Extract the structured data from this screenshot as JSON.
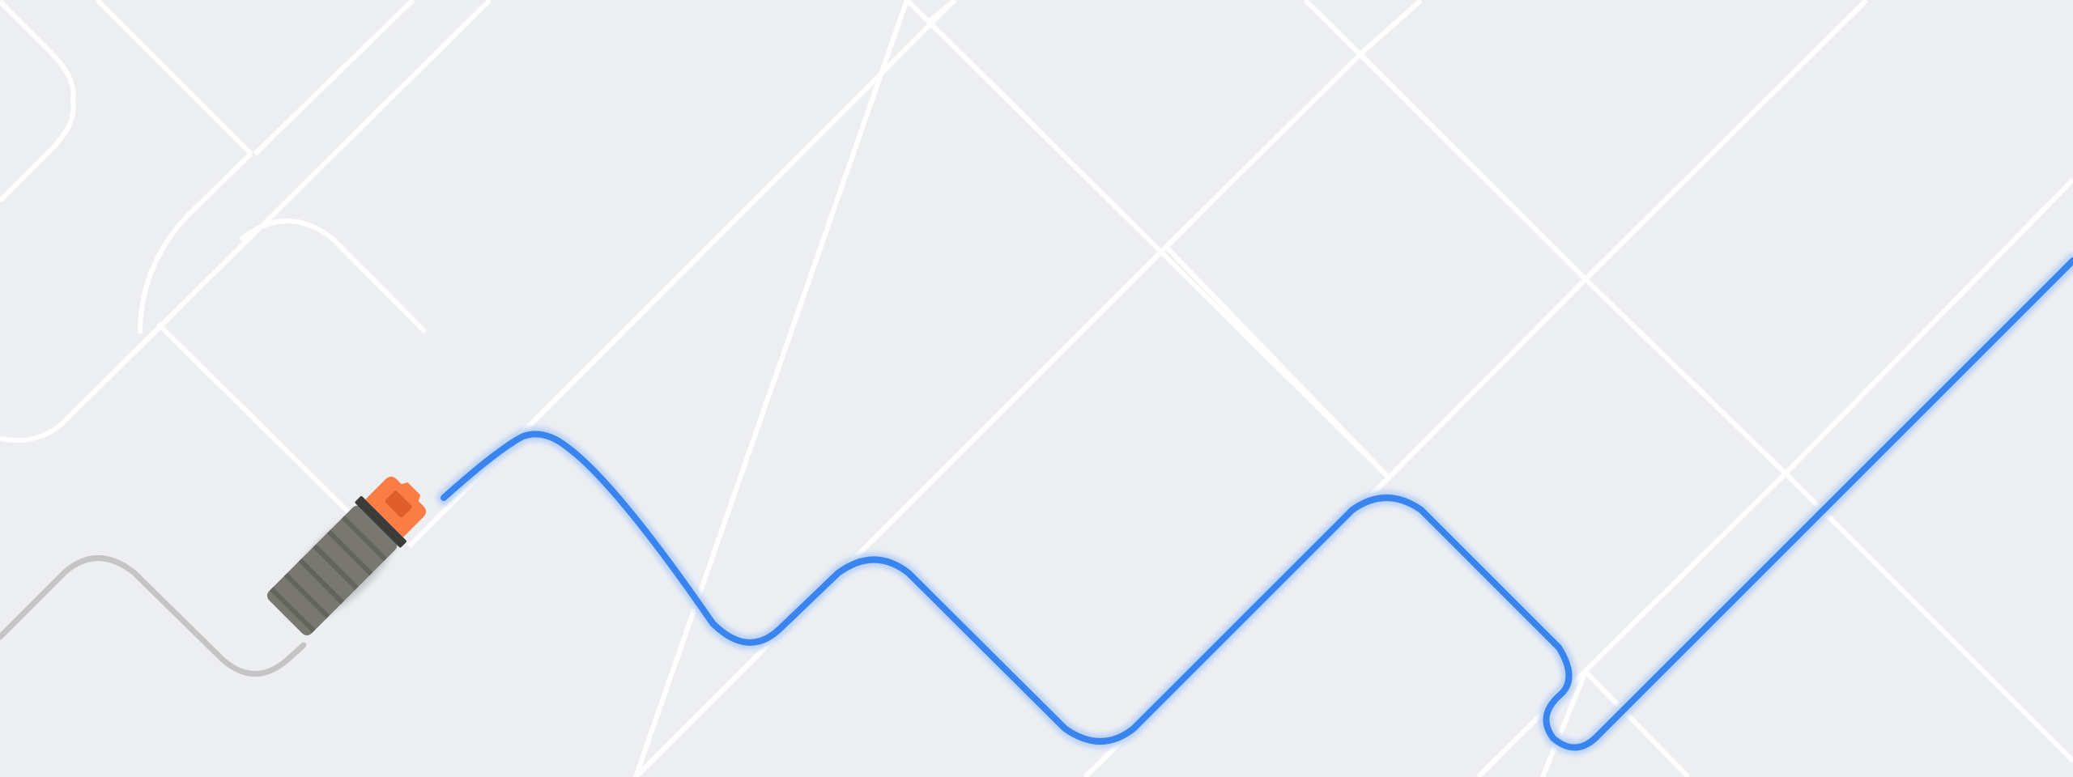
{
  "scene": {
    "kind": "cable-routing-puzzle",
    "text": []
  },
  "colors": {
    "background": "#eceef2",
    "guide_rails": "#ffffff",
    "active_cable": "#3a84ef",
    "cable_glow": "#bcd3f5",
    "inactive_cable": "#c4c4c4",
    "plug_body": "#787870",
    "plug_ridges": "#64645e",
    "plug_collar": "#3c3c3a",
    "plug_tip": "#fb7d46",
    "plug_tip_inner": "#e05e2a"
  },
  "icons": {
    "plug": "plug-connector-icon"
  }
}
